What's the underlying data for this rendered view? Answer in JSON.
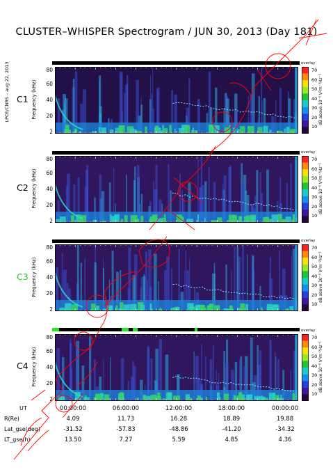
{
  "title": "CLUSTER–WHISPER Spectrogram / JUN 30, 2013 (Day 181)",
  "credit": "LPCE/CNRS – aug 22, 2013",
  "colorbar": {
    "top_label": "overlay",
    "ticks": [
      "70",
      "60",
      "50",
      "40",
      "30",
      "20",
      "10"
    ],
    "label": "dB above 10⁻⁸ V²m⁻²Hz⁻¹"
  },
  "y_axis": {
    "label": "Frequency (kHz)",
    "ticks": [
      "80",
      "60",
      "40",
      "20",
      "2"
    ]
  },
  "watermark_color": "#ff0000",
  "chart_data": [
    {
      "type": "heatmap",
      "name": "C1",
      "name_color": "#000000",
      "xlim": [
        "00:00:00",
        "24:00:00"
      ],
      "ylim": [
        2,
        80
      ]
    },
    {
      "type": "heatmap",
      "name": "C2",
      "name_color": "#000000",
      "xlim": [
        "00:00:00",
        "24:00:00"
      ],
      "ylim": [
        2,
        80
      ]
    },
    {
      "type": "heatmap",
      "name": "C3",
      "name_color": "#2fc02f",
      "xlim": [
        "00:00:00",
        "24:00:00"
      ],
      "ylim": [
        2,
        80
      ]
    },
    {
      "type": "heatmap",
      "name": "C4",
      "name_color": "#000000",
      "xlim": [
        "00:00:00",
        "24:00:00"
      ],
      "ylim": [
        2,
        80
      ]
    }
  ],
  "orbit_table": {
    "rows": [
      {
        "label": "UT",
        "values": [
          "00:00:00",
          "06:00:00",
          "12:00:00",
          "18:00:00",
          "00:00:00"
        ]
      },
      {
        "label": "R(Re)",
        "values": [
          "4.09",
          "11.73",
          "16.28",
          "18.89",
          "19.88"
        ]
      },
      {
        "label": "Lat_gse(deg)",
        "values": [
          "-31.52",
          "-57.83",
          "-48.86",
          "-41.20",
          "-34.32"
        ]
      },
      {
        "label": "LT_gse(h)",
        "values": [
          "13.50",
          "7.27",
          "5.59",
          "4.85",
          "4.36"
        ]
      }
    ]
  }
}
